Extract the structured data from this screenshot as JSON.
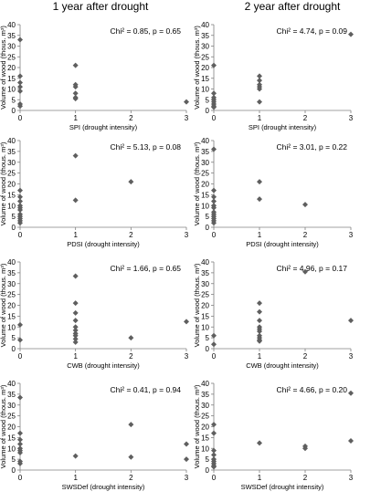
{
  "column_titles": [
    "1 year after drought",
    "2 year after drought"
  ],
  "chart_data": [
    {
      "type": "scatter",
      "xlabel": "SPI (drought intensity)",
      "ylabel": "Volume of wood (thous. m³)",
      "annotation": "Chi² = 0.85, p = 0.65",
      "xlim": [
        0,
        3
      ],
      "ylim": [
        0,
        40
      ],
      "xticks": [
        "0",
        "1",
        "2",
        "3"
      ],
      "yticks": [
        "0",
        "5",
        "10",
        "15",
        "20",
        "25",
        "30",
        "35",
        "40"
      ],
      "points": [
        [
          0,
          33
        ],
        [
          0,
          16
        ],
        [
          0,
          13
        ],
        [
          0,
          11
        ],
        [
          0,
          9
        ],
        [
          0,
          3
        ],
        [
          0,
          2
        ],
        [
          1,
          21
        ],
        [
          1,
          12
        ],
        [
          1,
          11
        ],
        [
          1,
          8
        ],
        [
          1,
          6
        ],
        [
          1,
          5.5
        ],
        [
          3,
          4
        ]
      ]
    },
    {
      "type": "scatter",
      "xlabel": "SPI (drought intensity)",
      "ylabel": "Volume of wood (thous. m³)",
      "annotation": "Chi² = 4.74, p = 0.09",
      "xlim": [
        0,
        3
      ],
      "ylim": [
        0,
        40
      ],
      "xticks": [
        "0",
        "1",
        "2",
        "3"
      ],
      "yticks": [
        "0",
        "5",
        "10",
        "15",
        "20",
        "25",
        "30",
        "35",
        "40"
      ],
      "points": [
        [
          0,
          21
        ],
        [
          0,
          8
        ],
        [
          0,
          6
        ],
        [
          0,
          5
        ],
        [
          0,
          4
        ],
        [
          0,
          3
        ],
        [
          0,
          2
        ],
        [
          0,
          1.5
        ],
        [
          1,
          16
        ],
        [
          1,
          14
        ],
        [
          1,
          12
        ],
        [
          1,
          11
        ],
        [
          1,
          10
        ],
        [
          1,
          4
        ],
        [
          3,
          35.5
        ]
      ]
    },
    {
      "type": "scatter",
      "xlabel": "PDSI (drought intensity)",
      "ylabel": "Volume of wood (thous. m³)",
      "annotation": "Chi² = 5.13, p = 0.08",
      "xlim": [
        0,
        3
      ],
      "ylim": [
        0,
        40
      ],
      "xticks": [
        "0",
        "1",
        "2",
        "3"
      ],
      "yticks": [
        "0",
        "5",
        "10",
        "15",
        "20",
        "25",
        "30",
        "35",
        "40"
      ],
      "points": [
        [
          0,
          17
        ],
        [
          0,
          14
        ],
        [
          0,
          12
        ],
        [
          0,
          10
        ],
        [
          0,
          9
        ],
        [
          0,
          8
        ],
        [
          0,
          6
        ],
        [
          0,
          5
        ],
        [
          0,
          4
        ],
        [
          0,
          3
        ],
        [
          0,
          2
        ],
        [
          1,
          33
        ],
        [
          1,
          12.5
        ],
        [
          2,
          21
        ]
      ]
    },
    {
      "type": "scatter",
      "xlabel": "PDSI (drought intensity)",
      "ylabel": "Volume of wood (thous. m³)",
      "annotation": "Chi² = 3.01, p = 0.22",
      "xlim": [
        0,
        3
      ],
      "ylim": [
        0,
        40
      ],
      "xticks": [
        "0",
        "1",
        "2",
        "3"
      ],
      "yticks": [
        "0",
        "5",
        "10",
        "15",
        "20",
        "25",
        "30",
        "35",
        "40"
      ],
      "points": [
        [
          0,
          36
        ],
        [
          0,
          17
        ],
        [
          0,
          14
        ],
        [
          0,
          12
        ],
        [
          0,
          10
        ],
        [
          0,
          9
        ],
        [
          0,
          7
        ],
        [
          0,
          6
        ],
        [
          0,
          5
        ],
        [
          0,
          4
        ],
        [
          0,
          3
        ],
        [
          0,
          2
        ],
        [
          1,
          21
        ],
        [
          1,
          13
        ],
        [
          2,
          10.5
        ]
      ]
    },
    {
      "type": "scatter",
      "xlabel": "CWB (drought intensity)",
      "ylabel": "Volume of wood (thous. m³)",
      "annotation": "Chi² = 1.66, p = 0.65",
      "xlim": [
        0,
        3
      ],
      "ylim": [
        0,
        40
      ],
      "xticks": [
        "0",
        "1",
        "2",
        "3"
      ],
      "yticks": [
        "0",
        "5",
        "10",
        "15",
        "20",
        "25",
        "30",
        "35",
        "40"
      ],
      "points": [
        [
          0,
          11
        ],
        [
          0,
          4
        ],
        [
          1,
          33.5
        ],
        [
          1,
          21
        ],
        [
          1,
          16.5
        ],
        [
          1,
          13
        ],
        [
          1,
          10
        ],
        [
          1,
          8.5
        ],
        [
          1,
          7
        ],
        [
          1,
          6
        ],
        [
          1,
          4.5
        ],
        [
          1,
          3
        ],
        [
          2,
          5
        ],
        [
          3,
          12.5
        ]
      ]
    },
    {
      "type": "scatter",
      "xlabel": "CWB (drought intensity)",
      "ylabel": "Volume of wood (thous. m³)",
      "annotation": "Chi² = 4.96, p = 0.17",
      "xlim": [
        0,
        3
      ],
      "ylim": [
        0,
        40
      ],
      "xticks": [
        "0",
        "1",
        "2",
        "3"
      ],
      "yticks": [
        "0",
        "5",
        "10",
        "15",
        "20",
        "25",
        "30",
        "35",
        "40"
      ],
      "points": [
        [
          0,
          6
        ],
        [
          0,
          2
        ],
        [
          1,
          21
        ],
        [
          1,
          17
        ],
        [
          1,
          13
        ],
        [
          1,
          10
        ],
        [
          1,
          9
        ],
        [
          1,
          8
        ],
        [
          1,
          6
        ],
        [
          1,
          5
        ],
        [
          1,
          4
        ],
        [
          1,
          3.5
        ],
        [
          2,
          35.5
        ],
        [
          3,
          13
        ]
      ]
    },
    {
      "type": "scatter",
      "xlabel": "SWSDef (drought intensity)",
      "ylabel": "Volume of wood (thous. m³)",
      "annotation": "Chi² = 0.41, p = 0.94",
      "xlim": [
        0,
        3
      ],
      "ylim": [
        0,
        40
      ],
      "xticks": [
        "0",
        "1",
        "2",
        "3"
      ],
      "yticks": [
        "0",
        "5",
        "10",
        "15",
        "20",
        "25",
        "30",
        "35",
        "40"
      ],
      "points": [
        [
          0,
          33.5
        ],
        [
          0,
          17
        ],
        [
          0,
          14
        ],
        [
          0,
          12
        ],
        [
          0,
          10
        ],
        [
          0,
          9
        ],
        [
          0,
          8
        ],
        [
          0,
          4
        ],
        [
          0,
          3
        ],
        [
          1,
          6.5
        ],
        [
          2,
          21
        ],
        [
          2,
          6
        ],
        [
          3,
          12
        ],
        [
          3,
          5
        ]
      ]
    },
    {
      "type": "scatter",
      "xlabel": "SWSDef (drought intensity)",
      "ylabel": "Volume of wood (thous. m³)",
      "annotation": "Chi² = 4.66, p = 0.20",
      "xlim": [
        0,
        3
      ],
      "ylim": [
        0,
        40
      ],
      "xticks": [
        "0",
        "1",
        "2",
        "3"
      ],
      "yticks": [
        "0",
        "5",
        "10",
        "15",
        "20",
        "25",
        "30",
        "35",
        "40"
      ],
      "points": [
        [
          0,
          21
        ],
        [
          0,
          17
        ],
        [
          0,
          9
        ],
        [
          0,
          7
        ],
        [
          0,
          5
        ],
        [
          0,
          4
        ],
        [
          0,
          3
        ],
        [
          0,
          2
        ],
        [
          0,
          1.5
        ],
        [
          1,
          12.5
        ],
        [
          2,
          11
        ],
        [
          2,
          10
        ],
        [
          3,
          35.5
        ],
        [
          3,
          13.5
        ]
      ]
    }
  ]
}
